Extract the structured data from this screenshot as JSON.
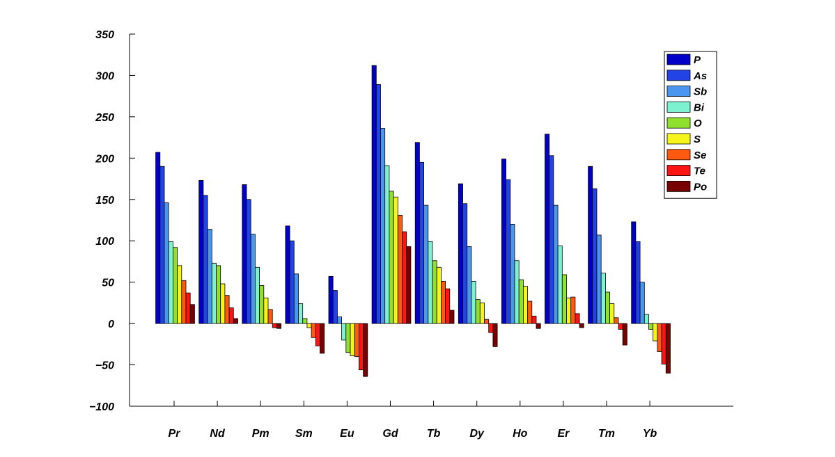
{
  "chart_data": {
    "type": "bar",
    "categories": [
      "Pr",
      "Nd",
      "Pm",
      "Sm",
      "Eu",
      "Gd",
      "Tb",
      "Dy",
      "Ho",
      "Er",
      "Tm",
      "Yb"
    ],
    "series": [
      {
        "name": "P",
        "color": "#0000c8",
        "values": [
          207,
          173,
          168,
          118,
          57,
          312,
          219,
          169,
          199,
          229,
          190,
          123
        ]
      },
      {
        "name": "As",
        "color": "#2244e6",
        "values": [
          190,
          155,
          150,
          100,
          40,
          289,
          195,
          145,
          174,
          203,
          163,
          99
        ]
      },
      {
        "name": "Sb",
        "color": "#4b97f0",
        "values": [
          146,
          114,
          108,
          60,
          8,
          236,
          143,
          93,
          120,
          143,
          107,
          50
        ]
      },
      {
        "name": "Bi",
        "color": "#7cf2d0",
        "values": [
          99,
          73,
          68,
          24,
          -20,
          191,
          99,
          51,
          76,
          94,
          61,
          11
        ]
      },
      {
        "name": "O",
        "color": "#90e030",
        "values": [
          92,
          70,
          46,
          6,
          -35,
          160,
          76,
          29,
          53,
          59,
          38,
          -7
        ]
      },
      {
        "name": "S",
        "color": "#f5f51a",
        "values": [
          70,
          48,
          31,
          -5,
          -39,
          153,
          68,
          25,
          45,
          31,
          24,
          -21
        ]
      },
      {
        "name": "Se",
        "color": "#ff5a10",
        "values": [
          52,
          34,
          17,
          -17,
          -40,
          131,
          51,
          5,
          27,
          32,
          7,
          -34
        ]
      },
      {
        "name": "Te",
        "color": "#ff1414",
        "values": [
          37,
          19,
          -5,
          -27,
          -56,
          111,
          42,
          -11,
          9,
          12,
          -7,
          -49
        ]
      },
      {
        "name": "Po",
        "color": "#780000",
        "values": [
          23,
          6,
          -6,
          -36,
          -64,
          93,
          16,
          -28,
          -6,
          -5,
          -26,
          -60
        ]
      }
    ],
    "title": "",
    "xlabel": "",
    "ylabel": "",
    "ylim": [
      -100,
      350
    ],
    "yticks": [
      "350",
      "300",
      "250",
      "200",
      "150",
      "100",
      "50",
      "0",
      "−50",
      "−100"
    ],
    "grid": false,
    "legend_position": "top-right"
  }
}
